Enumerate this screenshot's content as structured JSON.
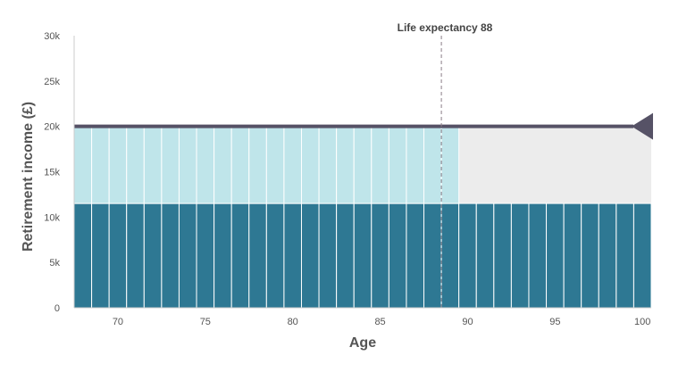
{
  "chart_data": {
    "type": "bar",
    "xlabel": "Age",
    "ylabel": "Retirement income (£)",
    "ylim": [
      0,
      30000
    ],
    "xlim": [
      67.5,
      100.5
    ],
    "y_ticks": [
      {
        "value": 0,
        "label": "0"
      },
      {
        "value": 5000,
        "label": "5k"
      },
      {
        "value": 10000,
        "label": "10k"
      },
      {
        "value": 15000,
        "label": "15k"
      },
      {
        "value": 20000,
        "label": "20k"
      },
      {
        "value": 25000,
        "label": "25k"
      },
      {
        "value": 30000,
        "label": "30k"
      }
    ],
    "x_ticks": [
      {
        "value": 70,
        "label": "70"
      },
      {
        "value": 75,
        "label": "75"
      },
      {
        "value": 80,
        "label": "80"
      },
      {
        "value": 85,
        "label": "85"
      },
      {
        "value": 90,
        "label": "90"
      },
      {
        "value": 95,
        "label": "95"
      },
      {
        "value": 100,
        "label": "100"
      }
    ],
    "ages": [
      68,
      69,
      70,
      71,
      72,
      73,
      74,
      75,
      76,
      77,
      78,
      79,
      80,
      81,
      82,
      83,
      84,
      85,
      86,
      87,
      88,
      89,
      90,
      91,
      92,
      93,
      94,
      95,
      96,
      97,
      98,
      99,
      100
    ],
    "series": [
      {
        "values": [
          11500,
          11500,
          11500,
          11500,
          11500,
          11500,
          11500,
          11500,
          11500,
          11500,
          11500,
          11500,
          11500,
          11500,
          11500,
          11500,
          11500,
          11500,
          11500,
          11500,
          11500,
          11500,
          11500,
          11500,
          11500,
          11500,
          11500,
          11500,
          11500,
          11500,
          11500,
          11500,
          11500
        ],
        "color": "#2e7893"
      },
      {
        "values": [
          8500,
          8500,
          8500,
          8500,
          8500,
          8500,
          8500,
          8500,
          8500,
          8500,
          8500,
          8500,
          8500,
          8500,
          8500,
          8500,
          8500,
          8500,
          8500,
          8500,
          8500,
          8500,
          0,
          0,
          0,
          0,
          0,
          0,
          0,
          0,
          0,
          0,
          0
        ],
        "color": "#bfe5ea"
      }
    ],
    "shortfall": {
      "from_age": 89.5,
      "to_age": 100.5,
      "bottom": 11500,
      "top": 20000,
      "color": "#ececec"
    },
    "target_line": {
      "value": 20000,
      "color": "#565266"
    },
    "life_expectancy": {
      "age": 88.5,
      "label": "Life expectancy 88",
      "color": "#8a7c86"
    },
    "grid": false
  }
}
